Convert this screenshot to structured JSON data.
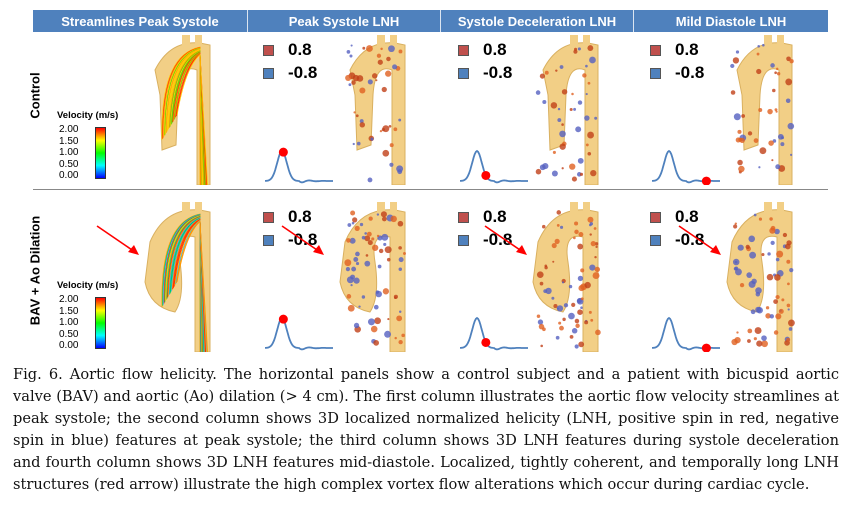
{
  "headers": [
    "Streamlines  Peak Systole",
    "Peak Systole LNH",
    "Systole Deceleration LNH",
    "Mild Diastole LNH"
  ],
  "rows": [
    "Control",
    "BAV + Ao Dilation"
  ],
  "lnh_legend": {
    "positive": "0.8",
    "negative": "-0.8",
    "positive_color": "#c0504d",
    "negative_color": "#4f81bd"
  },
  "velocity_legend": {
    "title": "Velocity (m/s)",
    "ticks": [
      "2.00",
      "1.50",
      "1.00",
      "0.50",
      "0.00"
    ]
  },
  "colors": {
    "header": "#4f81bd",
    "aorta": "#f2cf86",
    "arrow": "#ff0000"
  },
  "phases": [
    "peak systole",
    "systole deceleration",
    "mid-diastole"
  ],
  "caption": "Fig. 6. Aortic flow helicity. The horizontal panels show a control subject and a patient with bicuspid aortic valve (BAV) and aortic (Ao) dilation (> 4 cm). The first column illustrates the aortic flow velocity streamlines at peak systole; the second column shows 3D localized normalized helicity (LNH, positive spin in red, negative spin in blue) features at peak systole; the third column shows 3D LNH features during systole deceleration and fourth column shows 3D LNH features mid-diastole. Localized, tightly coherent, and temporally long LNH structures (red arrow) illustrate the high complex vortex flow alterations which occur during cardiac cycle."
}
